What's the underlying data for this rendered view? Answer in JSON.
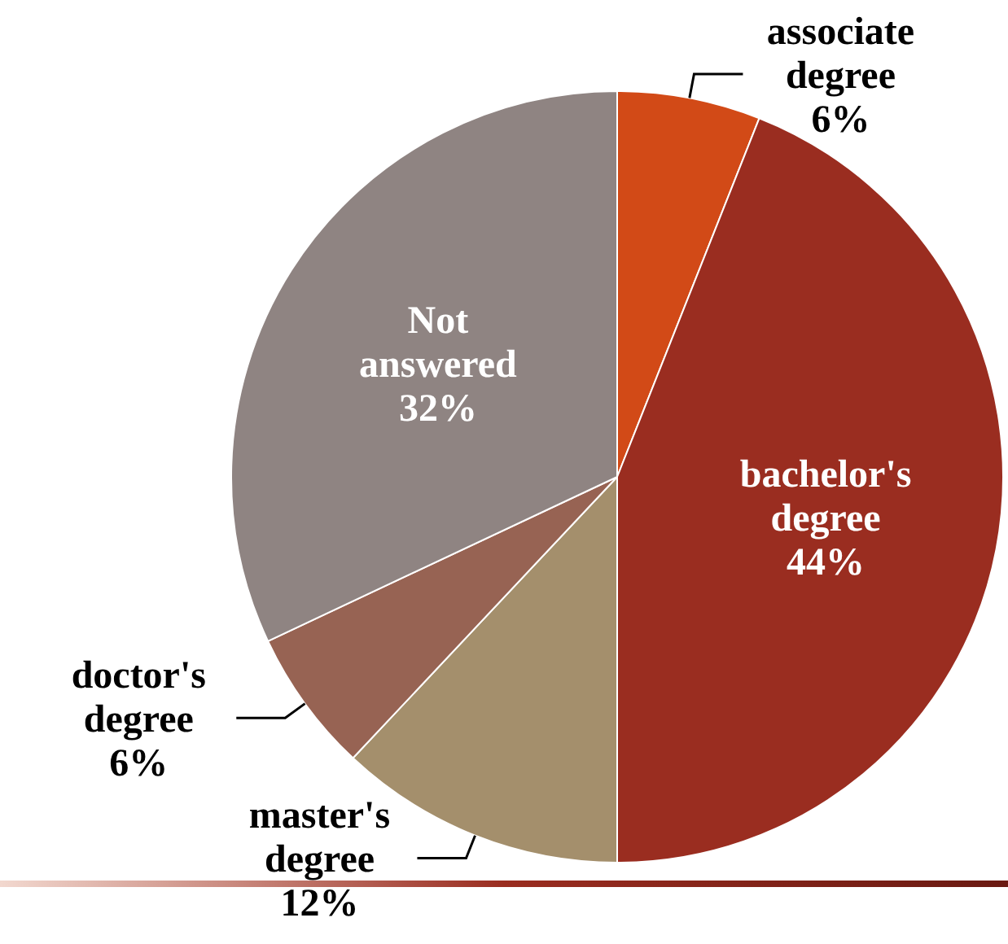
{
  "chart_data": {
    "type": "pie",
    "categories": [
      "associate degree",
      "bachelor's degree",
      "master's degree",
      "doctor's degree",
      "Not answered"
    ],
    "values": [
      6,
      44,
      12,
      6,
      32
    ],
    "colors": [
      "#d24a17",
      "#9a2d20",
      "#a48f6c",
      "#976353",
      "#8f8482"
    ],
    "value_labels": [
      "6%",
      "44%",
      "12%",
      "6%",
      "32%"
    ]
  }
}
